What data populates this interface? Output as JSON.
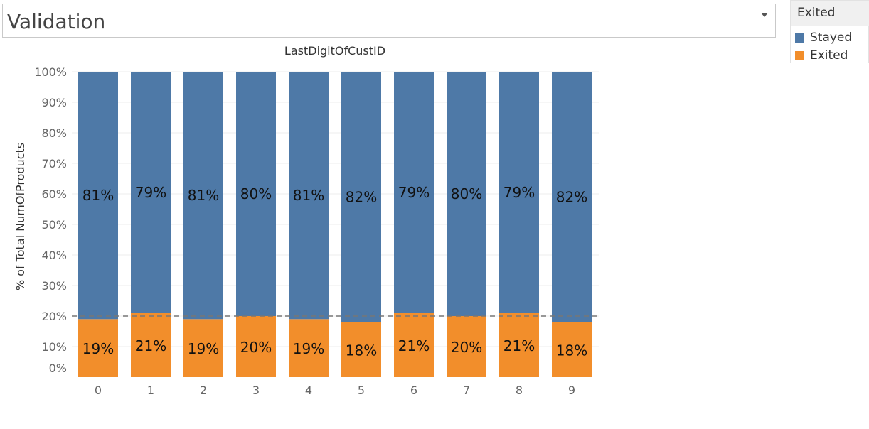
{
  "filter": {
    "value": "Validation"
  },
  "legend": {
    "title": "Exited",
    "items": [
      {
        "label": "Stayed",
        "color": "#4e79a7"
      },
      {
        "label": "Exited",
        "color": "#f28e2b"
      }
    ]
  },
  "chart_data": {
    "type": "bar",
    "stacked": true,
    "normalized": true,
    "title": "LastDigitOfCustID",
    "xlabel": "",
    "ylabel": "% of Total NumOfProducts",
    "categories": [
      "0",
      "1",
      "2",
      "3",
      "4",
      "5",
      "6",
      "7",
      "8",
      "9"
    ],
    "series": [
      {
        "name": "Exited",
        "color": "#f28e2b",
        "values": [
          19,
          21,
          19,
          20,
          19,
          18,
          21,
          20,
          21,
          18
        ],
        "labels": [
          "19%",
          "21%",
          "19%",
          "20%",
          "19%",
          "18%",
          "21%",
          "20%",
          "21%",
          "18%"
        ]
      },
      {
        "name": "Stayed",
        "color": "#4e79a7",
        "values": [
          81,
          79,
          81,
          80,
          81,
          82,
          79,
          80,
          79,
          82
        ],
        "labels": [
          "81%",
          "79%",
          "81%",
          "80%",
          "81%",
          "82%",
          "79%",
          "80%",
          "79%",
          "82%"
        ]
      }
    ],
    "ylim": [
      0,
      100
    ],
    "y_ticks": [
      "0%",
      "10%",
      "20%",
      "30%",
      "40%",
      "50%",
      "60%",
      "70%",
      "80%",
      "90%",
      "100%"
    ],
    "reference_line": 20,
    "grid": true,
    "legend_position": "right"
  }
}
